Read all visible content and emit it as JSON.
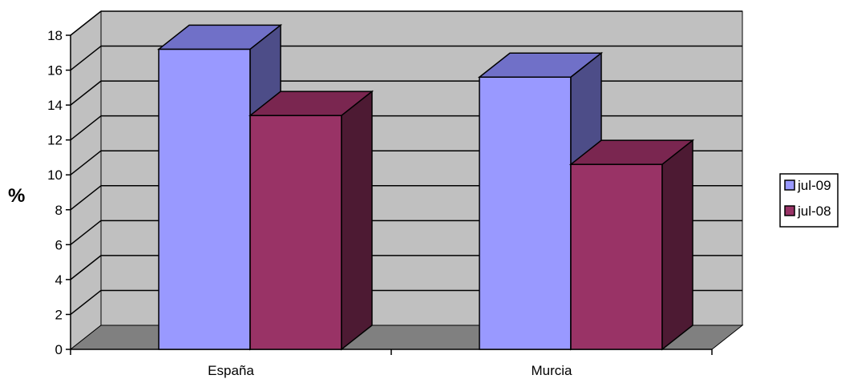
{
  "chart_data": {
    "type": "bar",
    "categories": [
      "España",
      "Murcia"
    ],
    "series": [
      {
        "name": "jul-09",
        "values": [
          17.2,
          15.6
        ],
        "color": "#9999ff",
        "top_color": "#7070c8",
        "side_color": "#4d4d88"
      },
      {
        "name": "jul-08",
        "values": [
          13.4,
          10.6
        ],
        "color": "#993366",
        "top_color": "#7a2650",
        "side_color": "#4d1a33"
      }
    ],
    "title": "",
    "xlabel": "",
    "ylabel": "%",
    "ylim": [
      0,
      18
    ],
    "yticks": [
      0,
      2,
      4,
      6,
      8,
      10,
      12,
      14,
      16,
      18
    ],
    "grid": true,
    "three_d": true,
    "wall_color": "#c0c0c0",
    "floor_color": "#808080",
    "legend_position": "right"
  }
}
